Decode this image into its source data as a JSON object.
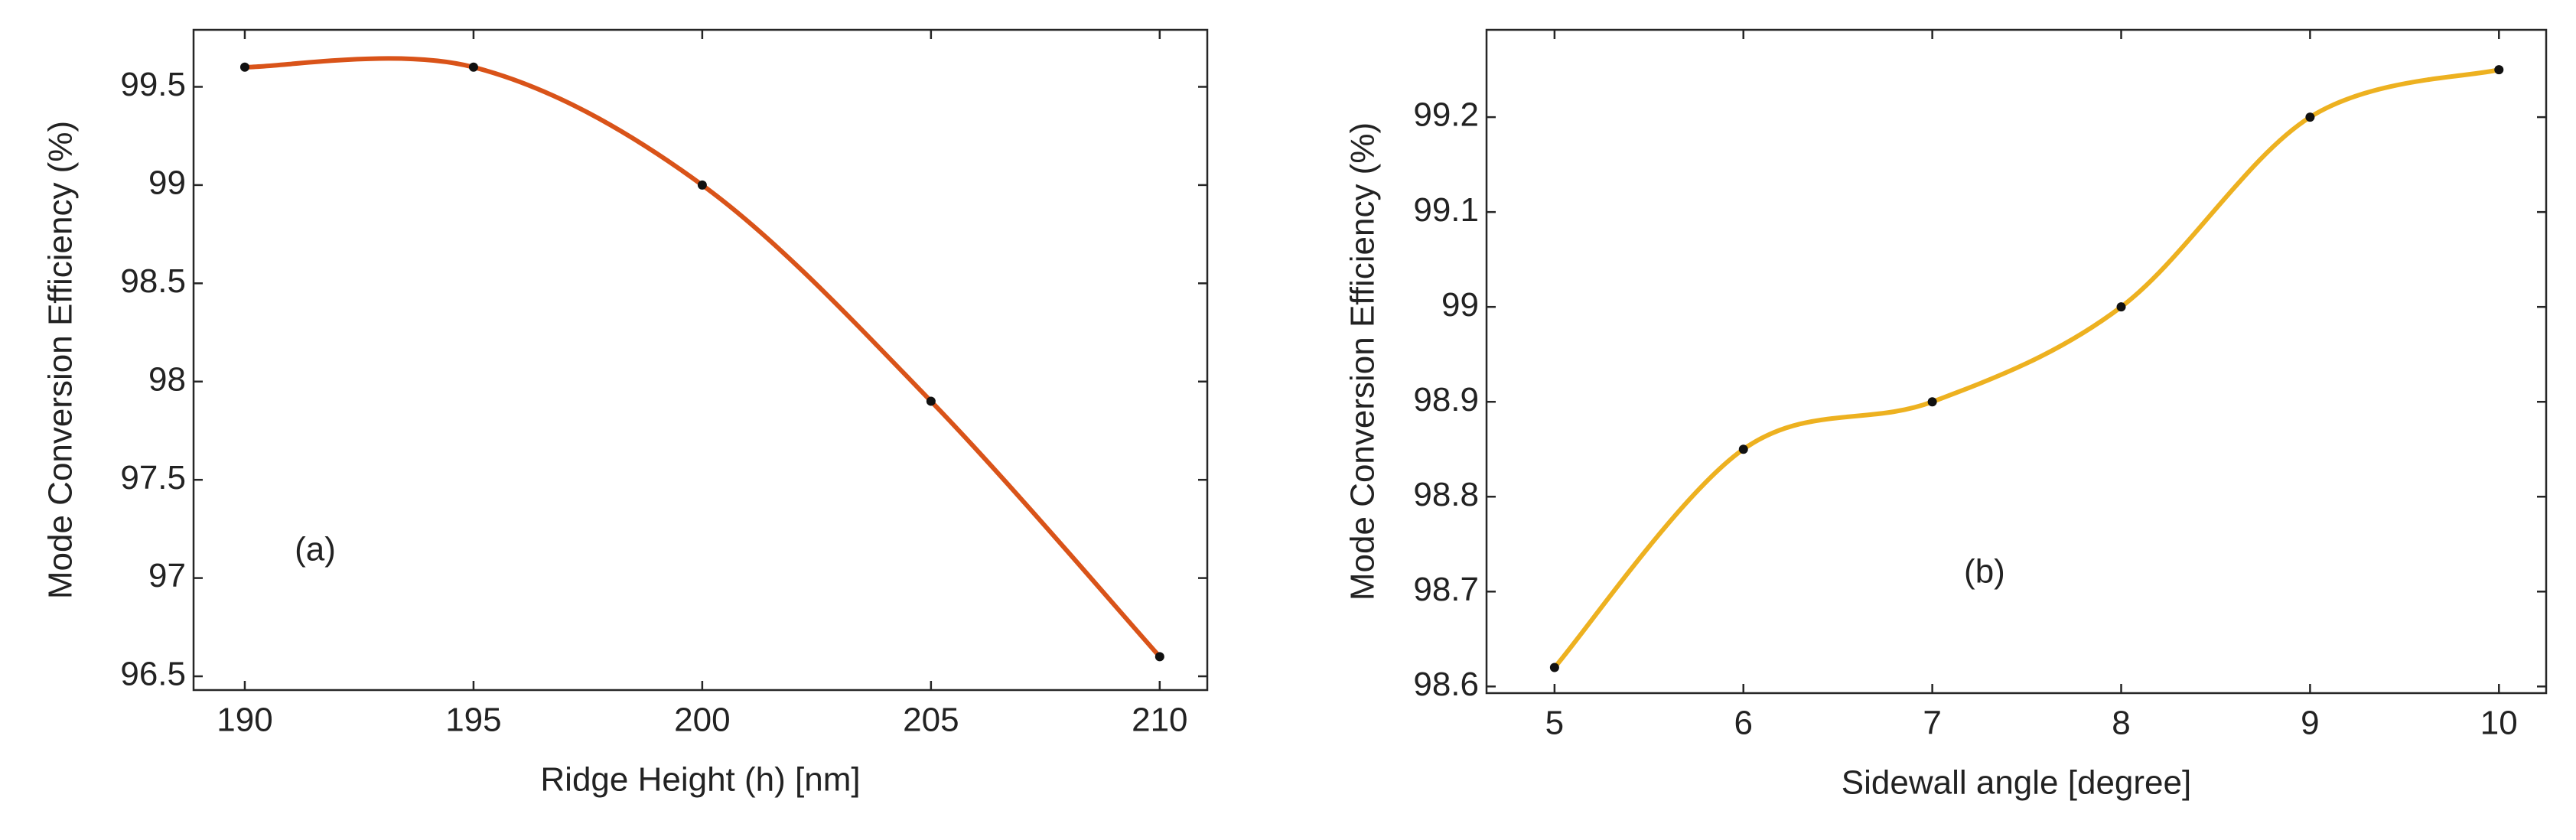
{
  "chart_data": [
    {
      "type": "line",
      "annotation": "(a)",
      "x_label": "Ridge Height (h) [nm]",
      "y_label": "Mode Conversion Efficiency (%)",
      "x": [
        190,
        195,
        200,
        205,
        210
      ],
      "series": [
        {
          "color": "#d95319",
          "values": [
            99.6,
            99.6,
            99.0,
            97.9,
            96.6
          ]
        }
      ],
      "xlim": [
        188.88,
        211.04
      ],
      "xticks": [
        190,
        195,
        200,
        205,
        210
      ],
      "ylim": [
        96.43,
        99.79
      ],
      "yticks": [
        96.5,
        97,
        97.5,
        98,
        98.5,
        99,
        99.5
      ]
    },
    {
      "type": "line",
      "annotation": "(b)",
      "x_label": "Sidewall angle [degree]",
      "y_label": "Mode Conversion Efficiency (%)",
      "x": [
        5,
        6,
        7,
        8,
        9,
        10
      ],
      "series": [
        {
          "color": "#edb120",
          "values": [
            98.62,
            98.85,
            98.9,
            99.0,
            99.2,
            99.25
          ]
        }
      ],
      "xlim": [
        4.64,
        10.25
      ],
      "xticks": [
        5,
        6,
        7,
        8,
        9,
        10
      ],
      "ylim": [
        98.593,
        99.292
      ],
      "yticks": [
        98.6,
        98.7,
        98.8,
        98.9,
        99,
        99.1,
        99.2
      ]
    }
  ]
}
